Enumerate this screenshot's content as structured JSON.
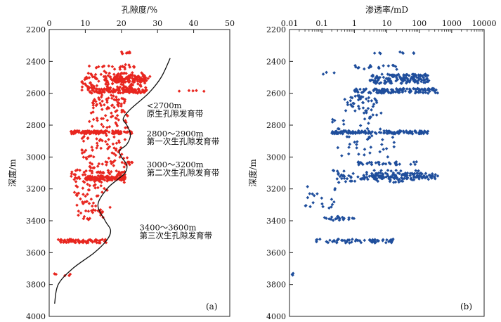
{
  "chart_data": [
    {
      "type": "scatter",
      "panel_label": "(a)",
      "xlabel": "孔隙度/%",
      "ylabel": "深度/m",
      "xlim": [
        0,
        50
      ],
      "ylim": [
        4000,
        2200
      ],
      "x_ticks": [
        "0",
        "10",
        "20",
        "30",
        "40",
        "50"
      ],
      "y_ticks": [
        "2200",
        "2400",
        "2600",
        "2800",
        "3000",
        "3200",
        "3400",
        "3600",
        "3800",
        "4000"
      ],
      "marker_color": "#e8261f",
      "clusters": [
        {
          "depth": [
            2340,
            2352
          ],
          "x": [
            20,
            23
          ],
          "n": 8
        },
        {
          "depth": [
            2420,
            2450
          ],
          "x": [
            11,
            24
          ],
          "n": 22
        },
        {
          "depth": [
            2460,
            2580
          ],
          "x": [
            9,
            28
          ],
          "n": 140
        },
        {
          "depth": [
            2490,
            2530
          ],
          "x": [
            18,
            27
          ],
          "n": 90
        },
        {
          "depth": [
            2570,
            2600
          ],
          "x": [
            11,
            27
          ],
          "n": 110
        },
        {
          "depth": [
            2580,
            2590
          ],
          "x": [
            34,
            43
          ],
          "n": 5
        },
        {
          "depth": [
            2610,
            2720
          ],
          "x": [
            12,
            21
          ],
          "n": 55
        },
        {
          "depth": [
            2720,
            2820
          ],
          "x": [
            11,
            22
          ],
          "n": 30
        },
        {
          "depth": [
            2835,
            2855
          ],
          "x": [
            6,
            23
          ],
          "n": 130
        },
        {
          "depth": [
            2860,
            2990
          ],
          "x": [
            9,
            21
          ],
          "n": 45
        },
        {
          "depth": [
            2990,
            3070
          ],
          "x": [
            8,
            22
          ],
          "n": 30
        },
        {
          "depth": [
            3030,
            3050
          ],
          "x": [
            20,
            24
          ],
          "n": 10
        },
        {
          "depth": [
            3080,
            3160
          ],
          "x": [
            6,
            21
          ],
          "n": 85
        },
        {
          "depth": [
            3120,
            3145
          ],
          "x": [
            10,
            21
          ],
          "n": 80
        },
        {
          "depth": [
            3170,
            3320
          ],
          "x": [
            7,
            17
          ],
          "n": 40
        },
        {
          "depth": [
            3330,
            3400
          ],
          "x": [
            8,
            15
          ],
          "n": 25
        },
        {
          "depth": [
            3515,
            3540
          ],
          "x": [
            2,
            16
          ],
          "n": 70
        },
        {
          "depth": [
            3730,
            3745
          ],
          "x": [
            1,
            6
          ],
          "n": 5
        }
      ],
      "trend_line": {
        "depth": [
          2380,
          2500,
          2600,
          2700,
          2760,
          2800,
          2860,
          2920,
          2960,
          3000,
          3050,
          3100,
          3140,
          3200,
          3300,
          3400,
          3460,
          3520,
          3600,
          3700,
          3800,
          3920
        ],
        "x": [
          33.5,
          31,
          27.5,
          22.5,
          20.5,
          21.5,
          22.5,
          21.5,
          19.5,
          20,
          21.5,
          21,
          19,
          16,
          13.5,
          15.5,
          17,
          16,
          12.5,
          6.5,
          2.5,
          1.5
        ]
      },
      "annotations": [
        {
          "depth": 2695,
          "x": 27,
          "text": "<2700m"
        },
        {
          "depth": 2745,
          "x": 27,
          "text": "原生孔隙发育带"
        },
        {
          "depth": 2870,
          "x": 27,
          "text": "2800～2900m"
        },
        {
          "depth": 2920,
          "x": 27,
          "text": "第一次生孔隙发育带"
        },
        {
          "depth": 3065,
          "x": 27,
          "text": "3000～3200m"
        },
        {
          "depth": 3115,
          "x": 27,
          "text": "第二次生孔隙发育带"
        },
        {
          "depth": 3460,
          "x": 25,
          "text": "3400～3600m"
        },
        {
          "depth": 3510,
          "x": 25,
          "text": "第三次生孔隙发育带"
        }
      ]
    },
    {
      "type": "scatter",
      "panel_label": "(b)",
      "xlabel": "渗透率/mD",
      "ylabel": "深度/m",
      "xscale": "log",
      "xlim": [
        0.01,
        10000
      ],
      "ylim": [
        4000,
        2200
      ],
      "x_ticks": [
        "0.01",
        "0.1",
        "1",
        "10",
        "100",
        "1000",
        "10000"
      ],
      "y_ticks": [
        "2200",
        "2400",
        "2600",
        "2800",
        "3000",
        "3200",
        "3400",
        "3600",
        "3800",
        "4000"
      ],
      "marker_color": "#1f4e9c",
      "clusters": [
        {
          "depth": [
            2340,
            2352
          ],
          "x": [
            4,
            80
          ],
          "n": 8
        },
        {
          "depth": [
            2420,
            2450
          ],
          "x": [
            0.7,
            30
          ],
          "n": 18
        },
        {
          "depth": [
            2460,
            2480
          ],
          "x": [
            0.1,
            0.3
          ],
          "n": 3
        },
        {
          "depth": [
            2480,
            2540
          ],
          "x": [
            3,
            200
          ],
          "n": 140
        },
        {
          "depth": [
            2570,
            2600
          ],
          "x": [
            1,
            400
          ],
          "n": 130
        },
        {
          "depth": [
            2610,
            2720
          ],
          "x": [
            0.5,
            5
          ],
          "n": 40
        },
        {
          "depth": [
            2720,
            2830
          ],
          "x": [
            0.2,
            8
          ],
          "n": 20
        },
        {
          "depth": [
            2835,
            2855
          ],
          "x": [
            0.2,
            200
          ],
          "n": 140
        },
        {
          "depth": [
            2860,
            3000
          ],
          "x": [
            0.3,
            20
          ],
          "n": 30
        },
        {
          "depth": [
            3030,
            3050
          ],
          "x": [
            1,
            150
          ],
          "n": 35
        },
        {
          "depth": [
            3080,
            3160
          ],
          "x": [
            0.2,
            100
          ],
          "n": 70
        },
        {
          "depth": [
            3100,
            3140
          ],
          "x": [
            2,
            400
          ],
          "n": 110
        },
        {
          "depth": [
            3180,
            3320
          ],
          "x": [
            0.03,
            0.3
          ],
          "n": 20
        },
        {
          "depth": [
            3370,
            3400
          ],
          "x": [
            0.1,
            1
          ],
          "n": 20
        },
        {
          "depth": [
            3515,
            3540
          ],
          "x": [
            0.05,
            20
          ],
          "n": 60
        },
        {
          "depth": [
            3730,
            3745
          ],
          "x": [
            0.01,
            0.015
          ],
          "n": 3
        }
      ]
    }
  ]
}
